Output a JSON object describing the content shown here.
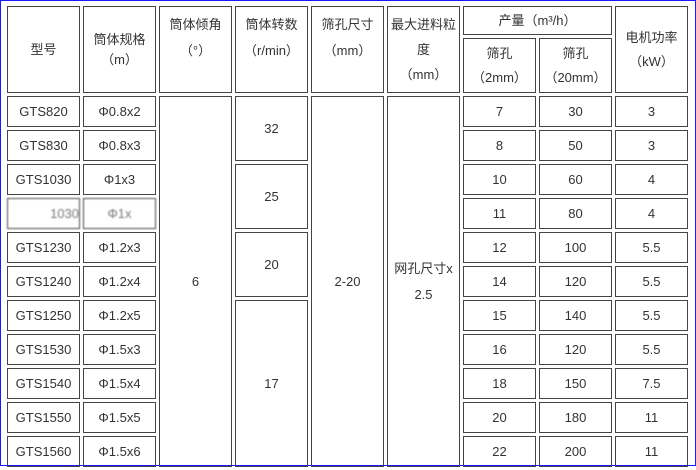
{
  "header": {
    "model": "型号",
    "spec": [
      "筒体规格",
      "（m）"
    ],
    "angle": [
      "筒体倾角",
      "（°）"
    ],
    "speed": [
      "筒体转数",
      "（r/min）"
    ],
    "screen": [
      "筛孔尺寸",
      "（mm）"
    ],
    "feed": [
      "最大进料粒",
      "度",
      "（mm）"
    ],
    "capacity": "产量（m³/h）",
    "cap_2mm": [
      "筛孔",
      "（2mm）"
    ],
    "cap_20mm": [
      "筛孔",
      "（20mm）"
    ],
    "power": [
      "电机功率",
      "（kW）"
    ]
  },
  "shared": {
    "angle": "6",
    "screen": "2-20",
    "feed": [
      "网孔尺寸x",
      "2.5"
    ],
    "speeds": [
      "32",
      "25",
      "20",
      "17"
    ]
  },
  "rows": [
    {
      "model": "GTS820",
      "spec": "Φ0.8x2",
      "cap2": "7",
      "cap20": "30",
      "power": "3"
    },
    {
      "model": "GTS830",
      "spec": "Φ0.8x3",
      "cap2": "8",
      "cap20": "50",
      "power": "3"
    },
    {
      "model": "GTS1030",
      "spec": "Φ1x3",
      "cap2": "10",
      "cap20": "60",
      "power": "4"
    },
    {
      "model": "1030",
      "spec": "Φ1x",
      "cap2": "11",
      "cap20": "80",
      "power": "4"
    },
    {
      "model": "GTS1230",
      "spec": "Φ1.2x3",
      "cap2": "12",
      "cap20": "100",
      "power": "5.5"
    },
    {
      "model": "GTS1240",
      "spec": "Φ1.2x4",
      "cap2": "14",
      "cap20": "120",
      "power": "5.5"
    },
    {
      "model": "GTS1250",
      "spec": "Φ1.2x5",
      "cap2": "15",
      "cap20": "140",
      "power": "5.5"
    },
    {
      "model": "GTS1530",
      "spec": "Φ1.5x3",
      "cap2": "16",
      "cap20": "120",
      "power": "5.5"
    },
    {
      "model": "GTS1540",
      "spec": "Φ1.5x4",
      "cap2": "18",
      "cap20": "150",
      "power": "7.5"
    },
    {
      "model": "GTS1550",
      "spec": "Φ1.5x5",
      "cap2": "20",
      "cap20": "180",
      "power": "11"
    },
    {
      "model": "GTS1560",
      "spec": "Φ1.5x6",
      "cap2": "22",
      "cap20": "200",
      "power": "11"
    }
  ]
}
